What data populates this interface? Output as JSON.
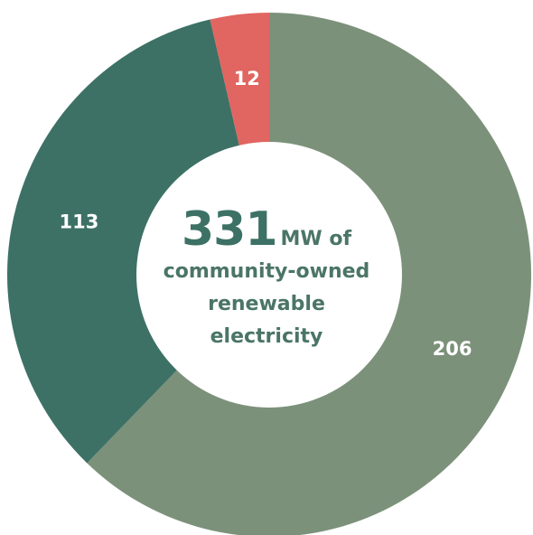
{
  "chart_data": {
    "type": "pie",
    "variant": "donut",
    "categories": [
      "",
      "",
      ""
    ],
    "values": [
      206,
      113,
      12
    ],
    "colors": [
      "#7c917a",
      "#3d7166",
      "#e16560"
    ],
    "center": {
      "total": "331",
      "unit": "MW of",
      "caption_lines": [
        "community-owned",
        "renewable",
        "electricity"
      ]
    }
  }
}
